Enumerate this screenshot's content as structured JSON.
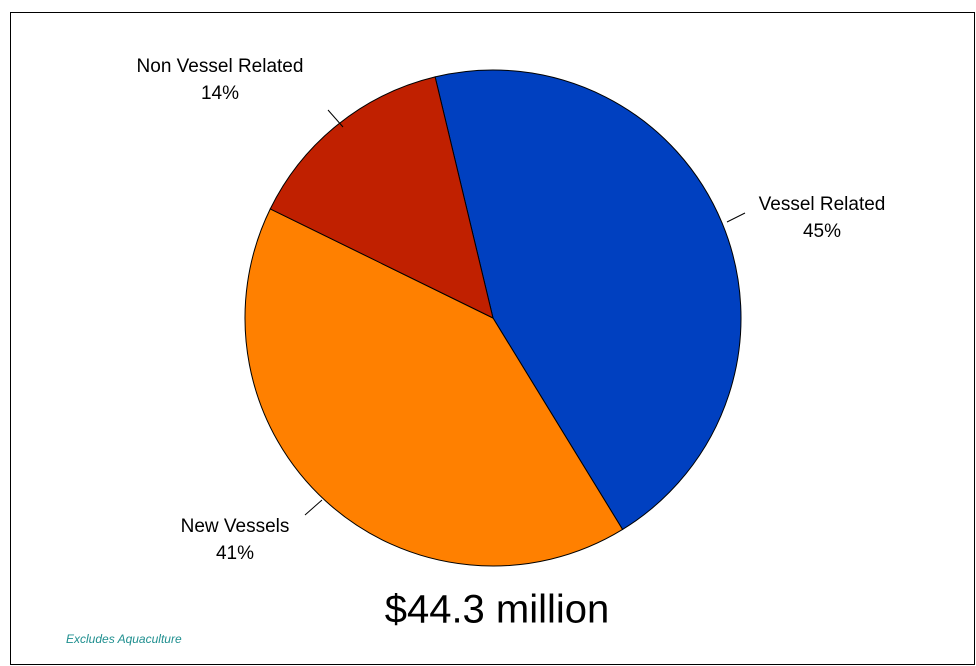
{
  "chart_data": {
    "type": "pie",
    "categories": [
      "Vessel Related",
      "New Vessels",
      "Non Vessel Related"
    ],
    "values": [
      45,
      41,
      14
    ],
    "value_labels": [
      "45%",
      "41%",
      "14%"
    ],
    "colors": [
      "#0040c0",
      "#ff8000",
      "#c02000"
    ],
    "annotations": [
      "$44.3 million",
      "Excludes Aquaculture"
    ]
  }
}
